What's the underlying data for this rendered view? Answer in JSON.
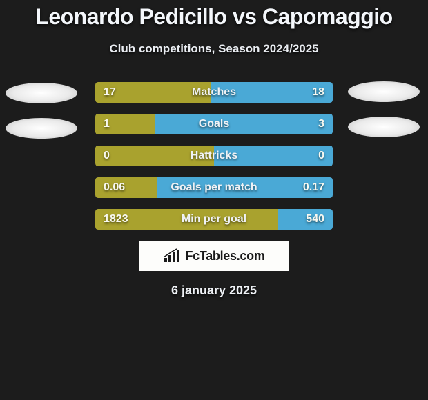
{
  "title": "Leonardo Pedicillo vs Capomaggio",
  "subtitle": "Club competitions, Season 2024/2025",
  "date": "6 january 2025",
  "brand": {
    "text": "FcTables.com"
  },
  "colors": {
    "left_fill": "#a9a22e",
    "right_fill": "#4aa9d6",
    "row_bg": "#333333",
    "background": "#1c1c1c",
    "badge_bg": "#fdfdfb",
    "text": "#f0f2f5"
  },
  "rows": [
    {
      "label": "Matches",
      "left": "17",
      "right": "18",
      "left_pct": 48.6,
      "right_pct": 51.4
    },
    {
      "label": "Goals",
      "left": "1",
      "right": "3",
      "left_pct": 25.0,
      "right_pct": 75.0
    },
    {
      "label": "Hattricks",
      "left": "0",
      "right": "0",
      "left_pct": 50.0,
      "right_pct": 50.0
    },
    {
      "label": "Goals per match",
      "left": "0.06",
      "right": "0.17",
      "left_pct": 26.1,
      "right_pct": 73.9
    },
    {
      "label": "Min per goal",
      "left": "1823",
      "right": "540",
      "left_pct": 77.1,
      "right_pct": 22.9
    }
  ]
}
